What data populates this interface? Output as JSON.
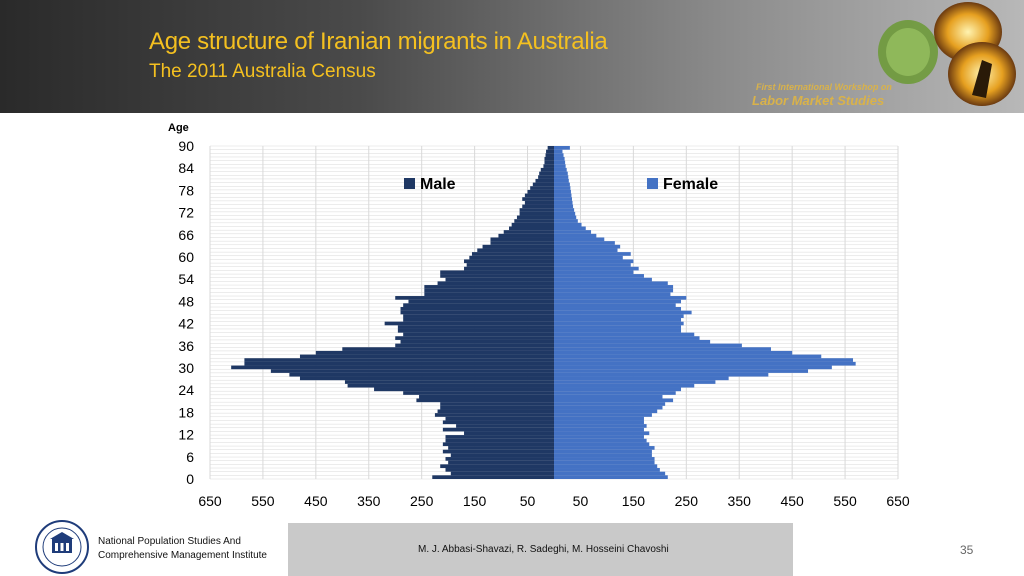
{
  "header": {
    "title": "Age structure of Iranian migrants in Australia",
    "subtitle": "The 2011 Australia Census",
    "workshop_line1": "First International Workshop on",
    "workshop_line2": "Labor Market Studies"
  },
  "footer": {
    "institute_line1": "National Population Studies And",
    "institute_line2": "Comprehensive Management Institute",
    "authors": "M. J. Abbasi-Shavazi, R. Sadeghi, M. Hosseini Chavoshi",
    "page_number": "35"
  },
  "colors": {
    "male": "#1f3864",
    "female": "#4472c4",
    "title": "#f4c020",
    "grid": "#d9d9d9"
  },
  "chart_data": {
    "type": "bar",
    "orientation": "horizontal-population-pyramid",
    "ylabel": "Age",
    "x_ticks": [
      "650",
      "550",
      "450",
      "350",
      "250",
      "150",
      "50",
      "50",
      "150",
      "250",
      "350",
      "450",
      "550",
      "650"
    ],
    "y_ticks": [
      "90",
      "84",
      "78",
      "72",
      "66",
      "60",
      "54",
      "48",
      "42",
      "36",
      "30",
      "24",
      "18",
      "12",
      "6",
      "0"
    ],
    "xlim": [
      -650,
      650
    ],
    "ylim": [
      0,
      90
    ],
    "grid": true,
    "legend_position": "top",
    "series": [
      {
        "name": "Male",
        "ages": [
          0,
          1,
          2,
          3,
          4,
          5,
          6,
          7,
          8,
          9,
          10,
          11,
          12,
          13,
          14,
          15,
          16,
          17,
          18,
          19,
          20,
          21,
          22,
          23,
          24,
          25,
          26,
          27,
          28,
          29,
          30,
          31,
          32,
          33,
          34,
          35,
          36,
          37,
          38,
          39,
          40,
          41,
          42,
          43,
          44,
          45,
          46,
          47,
          48,
          49,
          50,
          51,
          52,
          53,
          54,
          55,
          56,
          57,
          58,
          59,
          60,
          61,
          62,
          63,
          64,
          65,
          66,
          67,
          68,
          69,
          70,
          71,
          72,
          73,
          74,
          75,
          76,
          77,
          78,
          79,
          80,
          81,
          82,
          83,
          84,
          85,
          86,
          87,
          88,
          89,
          90
        ],
        "values": [
          230,
          195,
          205,
          215,
          200,
          205,
          195,
          210,
          200,
          210,
          205,
          205,
          170,
          210,
          185,
          210,
          205,
          225,
          220,
          215,
          215,
          260,
          255,
          285,
          340,
          390,
          395,
          480,
          500,
          535,
          610,
          585,
          585,
          480,
          450,
          400,
          300,
          290,
          300,
          285,
          295,
          295,
          320,
          285,
          285,
          290,
          290,
          285,
          275,
          300,
          245,
          245,
          245,
          220,
          205,
          215,
          215,
          170,
          165,
          170,
          160,
          155,
          145,
          135,
          120,
          120,
          105,
          95,
          85,
          80,
          75,
          70,
          65,
          65,
          60,
          55,
          60,
          55,
          50,
          45,
          40,
          35,
          30,
          28,
          25,
          20,
          18,
          18,
          16,
          15,
          12
        ]
      },
      {
        "name": "Female",
        "ages": [
          0,
          1,
          2,
          3,
          4,
          5,
          6,
          7,
          8,
          9,
          10,
          11,
          12,
          13,
          14,
          15,
          16,
          17,
          18,
          19,
          20,
          21,
          22,
          23,
          24,
          25,
          26,
          27,
          28,
          29,
          30,
          31,
          32,
          33,
          34,
          35,
          36,
          37,
          38,
          39,
          40,
          41,
          42,
          43,
          44,
          45,
          46,
          47,
          48,
          49,
          50,
          51,
          52,
          53,
          54,
          55,
          56,
          57,
          58,
          59,
          60,
          61,
          62,
          63,
          64,
          65,
          66,
          67,
          68,
          69,
          70,
          71,
          72,
          73,
          74,
          75,
          76,
          77,
          78,
          79,
          80,
          81,
          82,
          83,
          84,
          85,
          86,
          87,
          88,
          89,
          90
        ],
        "values": [
          215,
          210,
          200,
          195,
          190,
          190,
          185,
          185,
          190,
          180,
          175,
          170,
          180,
          170,
          175,
          170,
          170,
          185,
          195,
          205,
          210,
          225,
          205,
          230,
          240,
          265,
          305,
          330,
          405,
          480,
          525,
          570,
          565,
          505,
          450,
          410,
          355,
          295,
          275,
          265,
          240,
          240,
          245,
          240,
          245,
          260,
          240,
          230,
          240,
          250,
          220,
          225,
          225,
          215,
          185,
          170,
          150,
          160,
          145,
          150,
          130,
          145,
          120,
          125,
          115,
          95,
          80,
          70,
          60,
          52,
          45,
          42,
          40,
          38,
          36,
          35,
          34,
          33,
          32,
          31,
          30,
          28,
          27,
          26,
          24,
          22,
          21,
          20,
          18,
          16,
          30
        ]
      }
    ]
  }
}
